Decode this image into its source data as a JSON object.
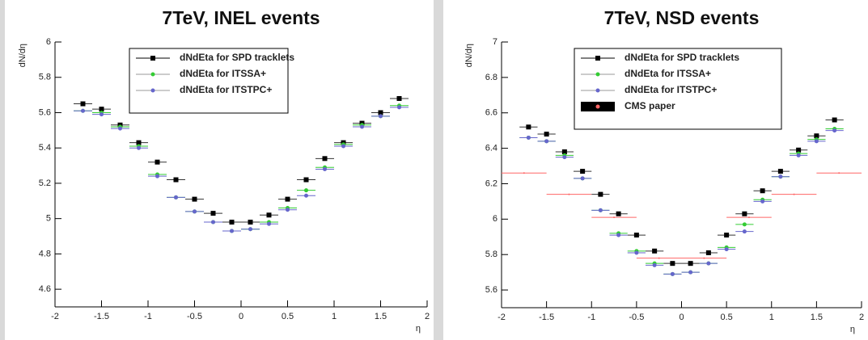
{
  "chart_data": [
    {
      "type": "scatter",
      "title": "7TeV, INEL events",
      "xlabel": "η",
      "ylabel": "dN/dη",
      "xlim": [
        -2,
        2
      ],
      "xticks": [
        -2,
        -1.5,
        -1,
        -0.5,
        0,
        0.5,
        1,
        1.5,
        2
      ],
      "ylim": [
        4.5,
        6
      ],
      "yticks": [
        4.6,
        4.8,
        5,
        5.2,
        5.4,
        5.6,
        5.8,
        6
      ],
      "series": [
        {
          "name": "dNdEta for SPD tracklets",
          "color": "#000000",
          "xerr": 0.1,
          "x": [
            -1.7,
            -1.5,
            -1.3,
            -1.1,
            -0.9,
            -0.7,
            -0.5,
            -0.3,
            -0.1,
            0.1,
            0.3,
            0.5,
            0.7,
            0.9,
            1.1,
            1.3,
            1.5,
            1.7
          ],
          "values": [
            5.65,
            5.62,
            5.53,
            5.43,
            5.32,
            5.22,
            5.11,
            5.03,
            4.98,
            4.98,
            5.02,
            5.11,
            5.22,
            5.34,
            5.43,
            5.54,
            5.6,
            5.68
          ]
        },
        {
          "name": "dNdEta for ITSSA+",
          "color": "#33cc33",
          "xerr": 0.1,
          "x": [
            -1.7,
            -1.5,
            -1.3,
            -1.1,
            -0.9,
            -0.7,
            -0.5,
            -0.3,
            -0.1,
            0.1,
            0.3,
            0.5,
            0.7,
            0.9,
            1.1,
            1.3,
            1.5,
            1.7
          ],
          "values": [
            5.61,
            5.6,
            5.52,
            5.41,
            5.25,
            5.12,
            5.04,
            4.98,
            4.93,
            4.94,
            4.98,
            5.06,
            5.16,
            5.29,
            5.42,
            5.53,
            5.58,
            5.64
          ]
        },
        {
          "name": "dNdEta for ITSTPC+",
          "color": "#6666cc",
          "xerr": 0.1,
          "x": [
            -1.7,
            -1.5,
            -1.3,
            -1.1,
            -0.9,
            -0.7,
            -0.5,
            -0.3,
            -0.1,
            0.1,
            0.3,
            0.5,
            0.7,
            0.9,
            1.1,
            1.3,
            1.5,
            1.7
          ],
          "values": [
            5.61,
            5.59,
            5.51,
            5.4,
            5.24,
            5.12,
            5.04,
            4.98,
            4.93,
            4.94,
            4.97,
            5.05,
            5.13,
            5.28,
            5.41,
            5.52,
            5.58,
            5.63
          ]
        }
      ]
    },
    {
      "type": "scatter",
      "title": "7TeV, NSD events",
      "xlabel": "η",
      "ylabel": "dN/dη",
      "xlim": [
        -2,
        2
      ],
      "xticks": [
        -2,
        -1.5,
        -1,
        -0.5,
        0,
        0.5,
        1,
        1.5,
        2
      ],
      "ylim": [
        5.5,
        7
      ],
      "yticks": [
        5.6,
        5.8,
        6,
        6.2,
        6.4,
        6.6,
        6.8,
        7
      ],
      "series": [
        {
          "name": "dNdEta for SPD tracklets",
          "color": "#000000",
          "xerr": 0.1,
          "x": [
            -1.7,
            -1.5,
            -1.3,
            -1.1,
            -0.9,
            -0.7,
            -0.5,
            -0.3,
            -0.1,
            0.1,
            0.3,
            0.5,
            0.7,
            0.9,
            1.1,
            1.3,
            1.5,
            1.7
          ],
          "values": [
            6.52,
            6.48,
            6.38,
            6.27,
            6.14,
            6.03,
            5.91,
            5.82,
            5.75,
            5.75,
            5.81,
            5.91,
            6.03,
            6.16,
            6.27,
            6.39,
            6.47,
            6.56
          ]
        },
        {
          "name": "dNdEta for ITSSA+",
          "color": "#33cc33",
          "xerr": 0.1,
          "x": [
            -1.7,
            -1.5,
            -1.3,
            -1.1,
            -0.9,
            -0.7,
            -0.5,
            -0.3,
            -0.1,
            0.1,
            0.3,
            0.5,
            0.7,
            0.9,
            1.1,
            1.3,
            1.5,
            1.7
          ],
          "values": [
            6.46,
            6.44,
            6.36,
            6.23,
            6.05,
            5.92,
            5.82,
            5.75,
            5.69,
            5.7,
            5.75,
            5.84,
            5.97,
            6.11,
            6.24,
            6.37,
            6.45,
            6.51
          ]
        },
        {
          "name": "dNdEta for ITSTPC+",
          "color": "#6666cc",
          "xerr": 0.1,
          "x": [
            -1.7,
            -1.5,
            -1.3,
            -1.1,
            -0.9,
            -0.7,
            -0.5,
            -0.3,
            -0.1,
            0.1,
            0.3,
            0.5,
            0.7,
            0.9,
            1.1,
            1.3,
            1.5,
            1.7
          ],
          "values": [
            6.46,
            6.44,
            6.35,
            6.23,
            6.05,
            5.91,
            5.81,
            5.74,
            5.69,
            5.7,
            5.75,
            5.83,
            5.93,
            6.1,
            6.24,
            6.36,
            6.44,
            6.5
          ]
        },
        {
          "name": "CMS paper",
          "color": "#ff6666",
          "xerr": 0.25,
          "x": [
            -1.75,
            -1.25,
            -0.75,
            -0.25,
            0.25,
            0.75,
            1.25,
            1.75
          ],
          "values": [
            6.26,
            6.14,
            6.01,
            5.78,
            5.78,
            6.01,
            6.14,
            6.26
          ]
        }
      ]
    }
  ]
}
